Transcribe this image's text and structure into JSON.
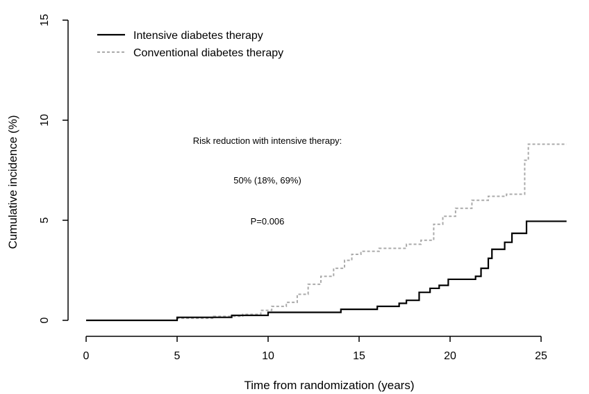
{
  "chart_data": {
    "type": "line",
    "xlabel": "Time from randomization (years)",
    "ylabel": "Cumulative incidence (%)",
    "xlim": [
      0,
      26.5
    ],
    "ylim": [
      0,
      15
    ],
    "xticks": [
      0,
      5,
      10,
      15,
      20,
      25
    ],
    "yticks": [
      0,
      5,
      10,
      15
    ],
    "grid": false,
    "legend_position": "top-left",
    "series": [
      {
        "name": "Intensive diabetes therapy",
        "style": "solid",
        "color": "#000000",
        "x": [
          0,
          4,
          5,
          8,
          10,
          14,
          16,
          17.2,
          17.6,
          18.3,
          18.9,
          19.4,
          19.9,
          21.4,
          21.7,
          22.1,
          22.3,
          23,
          23.4,
          24.2,
          26.4
        ],
        "y": [
          0,
          0,
          0.15,
          0.25,
          0.4,
          0.55,
          0.7,
          0.85,
          1.0,
          1.4,
          1.6,
          1.75,
          2.05,
          2.2,
          2.6,
          3.1,
          3.55,
          3.9,
          4.35,
          4.95,
          4.95
        ]
      },
      {
        "name": "Conventional diabetes therapy",
        "style": "dashed",
        "color": "#aaaaaa",
        "x": [
          0,
          4,
          5,
          7,
          8.6,
          9.6,
          10.2,
          11,
          11.6,
          12.2,
          12.9,
          13.6,
          14.2,
          14.6,
          15.1,
          16.1,
          17.6,
          18.4,
          19.1,
          19.6,
          20.3,
          21.2,
          22.1,
          23.1,
          23.9,
          24.1,
          24.3,
          26.4
        ],
        "y": [
          0,
          0,
          0.1,
          0.2,
          0.3,
          0.5,
          0.7,
          0.9,
          1.3,
          1.8,
          2.2,
          2.6,
          3.0,
          3.3,
          3.45,
          3.6,
          3.8,
          4.0,
          4.8,
          5.2,
          5.6,
          6.0,
          6.2,
          6.3,
          6.3,
          8.0,
          8.8,
          8.8
        ]
      }
    ],
    "annotations": [
      "Risk reduction with intensive therapy:",
      "50% (18%, 69%)",
      "P=0.006"
    ]
  }
}
